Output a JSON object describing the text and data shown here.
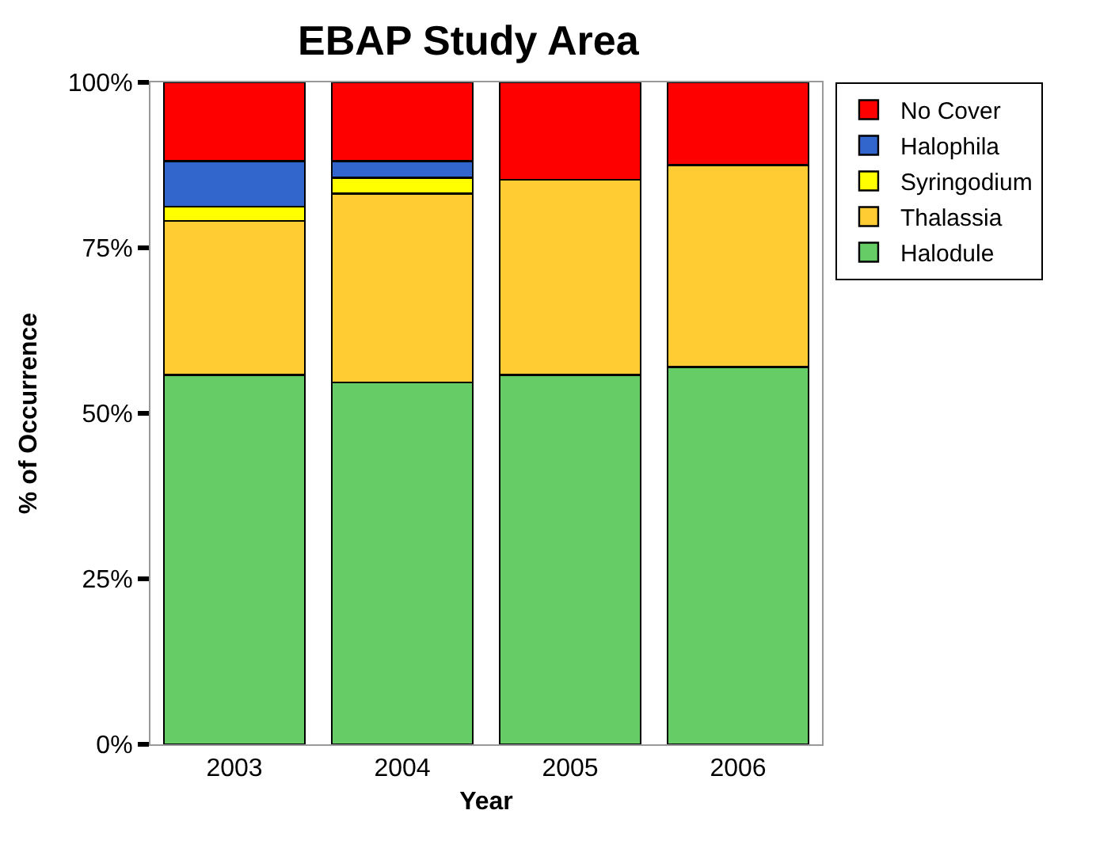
{
  "chart_data": {
    "type": "bar",
    "title": "EBAP Study Area",
    "xlabel": "Year",
    "ylabel": "% of Occurrence",
    "categories": [
      "2003",
      "2004",
      "2005",
      "2006"
    ],
    "stacked": true,
    "series": [
      {
        "name": "Halodule",
        "color": "#66cc66",
        "values": [
          55.8,
          54.7,
          55.8,
          57.0
        ]
      },
      {
        "name": "Thalassia",
        "color": "#ffcc33",
        "values": [
          23.3,
          28.5,
          29.5,
          30.5
        ]
      },
      {
        "name": "Syringodium",
        "color": "#ffff00",
        "values": [
          2.1,
          2.4,
          0,
          0
        ]
      },
      {
        "name": "Halophila",
        "color": "#3366cc",
        "values": [
          6.9,
          2.5,
          0,
          0
        ]
      },
      {
        "name": "No Cover",
        "color": "#ff0000",
        "values": [
          11.9,
          11.9,
          14.7,
          12.5
        ]
      }
    ],
    "ylim": [
      0,
      100
    ],
    "yticks": [
      {
        "value": 0,
        "label": "0%"
      },
      {
        "value": 25,
        "label": "25%"
      },
      {
        "value": 50,
        "label": "50%"
      },
      {
        "value": 75,
        "label": "75%"
      },
      {
        "value": 100,
        "label": "100%"
      }
    ],
    "legend": "top right"
  }
}
